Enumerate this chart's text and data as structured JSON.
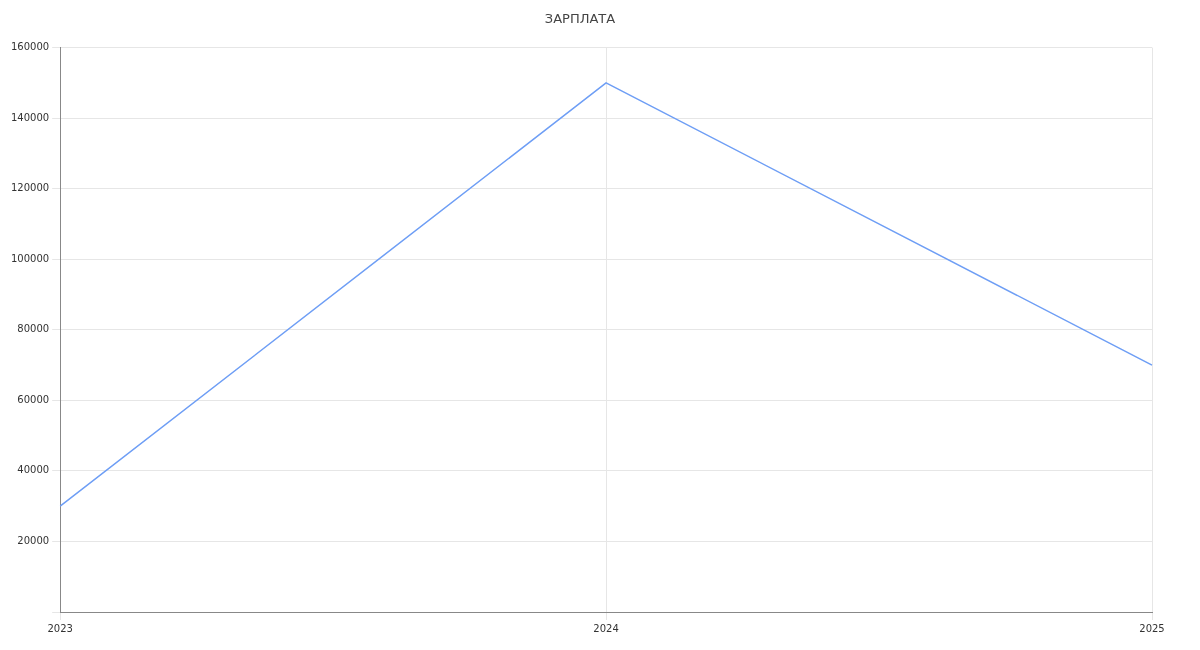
{
  "chart_data": {
    "type": "line",
    "title": "ЗАРПЛАТА",
    "categories": [
      "2023",
      "2024",
      "2025"
    ],
    "series": [
      {
        "color": "#6e9ef5",
        "values": [
          30000,
          150000,
          70000
        ]
      }
    ],
    "ylim": [
      0,
      160000
    ],
    "yticks": [
      {
        "value": 0,
        "label": null
      },
      20000,
      40000,
      60000,
      80000,
      100000,
      120000,
      140000,
      160000
    ],
    "grid": true,
    "legend": false,
    "marker": "none",
    "line_style": "solid"
  }
}
